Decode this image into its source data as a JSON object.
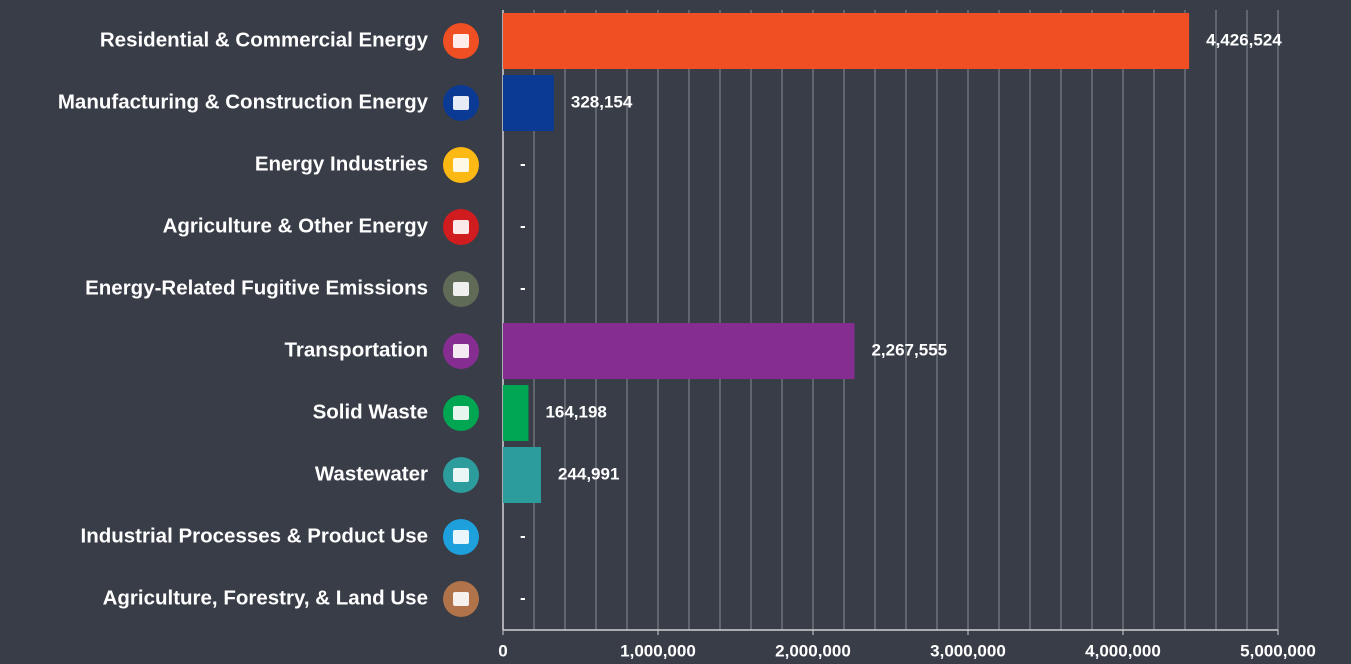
{
  "chart_data": {
    "type": "hbar",
    "categories": [
      "Residential & Commercial Energy",
      "Manufacturing & Construction Energy",
      "Energy Industries",
      "Agriculture & Other Energy",
      "Energy-Related Fugitive Emissions",
      "Transportation",
      "Solid Waste",
      "Wastewater",
      "Industrial Processes & Product Use",
      "Agriculture, Forestry, & Land Use"
    ],
    "values": [
      4426524,
      328154,
      0,
      0,
      0,
      2267555,
      164198,
      244991,
      0,
      0
    ],
    "value_labels": [
      "4,426,524",
      "328,154",
      "-",
      "-",
      "-",
      "2,267,555",
      "164,198",
      "244,991",
      "-",
      "-"
    ],
    "colors": [
      "#f04e23",
      "#0a3a94",
      "#fdb913",
      "#d01c1f",
      "#5f6b57",
      "#862d91",
      "#00a651",
      "#2c9c9d",
      "#1ea0dc",
      "#b0734a"
    ],
    "xlim": [
      0,
      5000000
    ],
    "xticks": [
      0,
      {
        "value": 1000000,
        "label": "1,000,000"
      },
      {
        "value": 2000000,
        "label": "2,000,000"
      },
      {
        "value": 3000000,
        "label": "3,000,000"
      },
      {
        "value": 4000000,
        "label": "4,000,000"
      },
      {
        "value": 5000000,
        "label": "5,000,000"
      }
    ],
    "xgrid": [
      0,
      200000,
      400000,
      600000,
      800000,
      1000000,
      1200000,
      1400000,
      1600000,
      1800000,
      2000000,
      2200000,
      2400000,
      2600000,
      2800000,
      3000000,
      3200000,
      3400000,
      3600000,
      3800000,
      4000000,
      4200000,
      4400000,
      4600000,
      4800000,
      5000000
    ],
    "grid": true
  }
}
